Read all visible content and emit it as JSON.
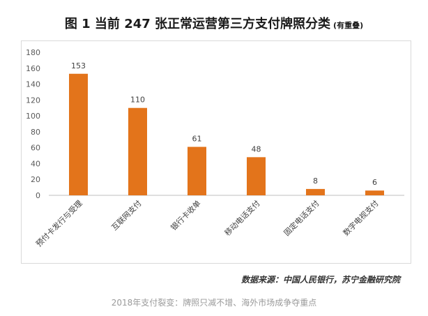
{
  "title": "图 1  当前 247 张正常运营第三方支付牌照分类",
  "title_note": "(有重叠)",
  "source": "数据来源：中国人民银行，苏宁金融研究院",
  "caption": "2018年支付裂变：牌照只减不增、海外市场成争夺重点",
  "chart_data": {
    "type": "bar",
    "categories": [
      "预付卡发行与受理",
      "互联网支付",
      "银行卡收单",
      "移动电话支付",
      "固定电话支付",
      "数字电视支付"
    ],
    "values": [
      153,
      110,
      61,
      48,
      8,
      6
    ],
    "ylim": [
      0,
      180
    ],
    "yticks": [
      0,
      20,
      40,
      60,
      80,
      100,
      120,
      140,
      160,
      180
    ],
    "bar_color": "#e3741b",
    "grid": false
  }
}
